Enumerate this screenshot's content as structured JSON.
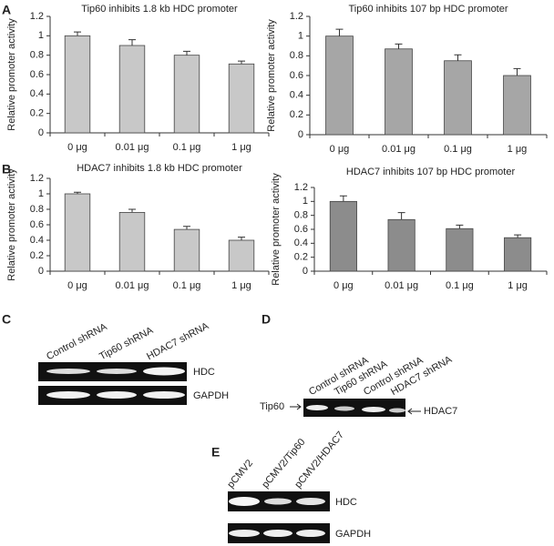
{
  "chart_data": [
    {
      "type": "bar",
      "panel": "A",
      "title": "Tip60 inhibits 1.8 kb HDC promoter",
      "y_label": "Relative promoter activity",
      "categories": [
        "0 μg",
        "0.01 μg",
        "0.1 μg",
        "1 μg"
      ],
      "values": [
        1.0,
        0.9,
        0.8,
        0.71
      ],
      "errors": [
        0.04,
        0.06,
        0.04,
        0.03
      ],
      "color": "#c8c8c8",
      "ylim": [
        0,
        1.2
      ],
      "yticks": [
        0,
        0.2,
        0.4,
        0.6,
        0.8,
        1,
        1.2
      ]
    },
    {
      "type": "bar",
      "title": "Tip60 inhibits 107 bp HDC promoter",
      "y_label": "Relative promoter activity",
      "categories": [
        "0 μg",
        "0.01 μg",
        "0.1 μg",
        "1 μg"
      ],
      "values": [
        1.0,
        0.87,
        0.75,
        0.6
      ],
      "errors": [
        0.07,
        0.05,
        0.06,
        0.07
      ],
      "color": "#a6a6a6",
      "ylim": [
        0,
        1.2
      ],
      "yticks": [
        0,
        0.2,
        0.4,
        0.6,
        0.8,
        1,
        1.2
      ]
    },
    {
      "type": "bar",
      "panel": "B",
      "title": "HDAC7 inhibits 1.8 kb HDC promoter",
      "y_label": "Relative promoter activity",
      "categories": [
        "0 μg",
        "0.01 μg",
        "0.1 μg",
        "1 μg"
      ],
      "values": [
        1.0,
        0.76,
        0.54,
        0.4
      ],
      "errors": [
        0.02,
        0.04,
        0.04,
        0.04
      ],
      "color": "#c8c8c8",
      "ylim": [
        0,
        1.2
      ],
      "yticks": [
        0,
        0.2,
        0.4,
        0.6,
        0.8,
        1,
        1.2
      ]
    },
    {
      "type": "bar",
      "title": "HDAC7 inhibits 107 bp HDC promoter",
      "y_label": "Relative promoter activity",
      "categories": [
        "0 μg",
        "0.01 μg",
        "0.1 μg",
        "1 μg"
      ],
      "values": [
        1.0,
        0.74,
        0.61,
        0.48
      ],
      "errors": [
        0.08,
        0.1,
        0.05,
        0.04
      ],
      "color": "#8c8c8c",
      "ylim": [
        0,
        1.2
      ],
      "yticks": [
        0,
        0.2,
        0.4,
        0.6,
        0.8,
        1,
        1.2
      ]
    }
  ],
  "gels": {
    "C": {
      "panel": "C",
      "lanes": [
        "Control shRNA",
        "Tip60 shRNA",
        "HDAC7 shRNA"
      ],
      "rows": [
        "HDC",
        "GAPDH"
      ]
    },
    "D": {
      "panel": "D",
      "lanes": [
        "Control shRNA",
        "Tip60 shRNA",
        "Control shRNA",
        "HDAC7 shRNA"
      ],
      "left": "Tip60",
      "right": "HDAC7"
    },
    "E": {
      "panel": "E",
      "lanes": [
        "pCMV2",
        "pCMV2/Tip60",
        "pCMV2/HDAC7"
      ],
      "rows": [
        "HDC",
        "GAPDH"
      ]
    }
  }
}
